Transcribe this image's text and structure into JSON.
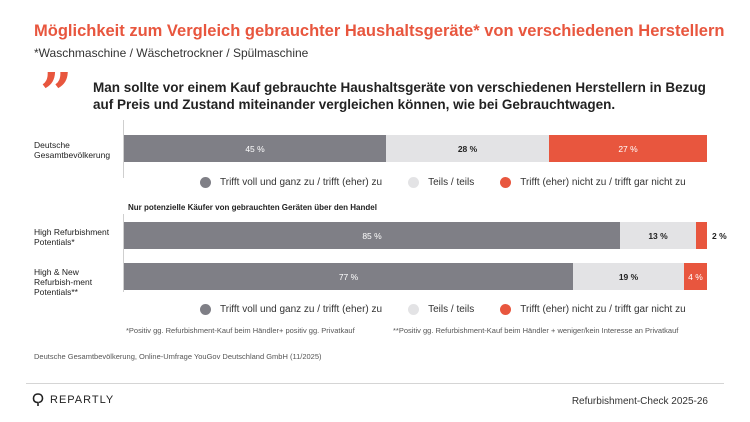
{
  "header": {
    "title": "Möglichkeit zum Vergleich gebrauchter Haushaltsgeräte* von verschiedenen Herstellern",
    "subtitle": "*Waschmaschine / Wäschetrockner / Spülmaschine"
  },
  "quote": {
    "mark": "”",
    "text": "Man sollte vor einem Kauf gebrauchte Haushaltsgeräte von verschiedenen Herstellern in Bezug auf Preis und Zustand miteinander vergleichen können, wie bei Gebrauchtwagen."
  },
  "chart_data": {
    "type": "bar",
    "orientation": "horizontal-stacked-100",
    "series": [
      {
        "name": "Trifft voll und ganz zu / trifft (eher) zu",
        "color": "#7f7f86"
      },
      {
        "name": "Teils / teils",
        "color": "#e3e3e5"
      },
      {
        "name": "Trifft (eher) nicht zu / trifft gar nicht zu",
        "color": "#e8563e"
      }
    ],
    "section_note": "Nur potenzielle Käufer von gebrauchten Geräten über den Handel",
    "rows": [
      {
        "label": "Deutsche Gesamtbevölkerung",
        "values": [
          45,
          28,
          27
        ],
        "display": [
          "45 %",
          "28 %",
          "27 %"
        ]
      },
      {
        "label": "High Refurbishment Potentials*",
        "values": [
          85,
          13,
          2
        ],
        "display": [
          "85 %",
          "13 %",
          "2 %"
        ]
      },
      {
        "label": "High & New Refurbish-ment Potentials**",
        "values": [
          77,
          19,
          4
        ],
        "display": [
          "77 %",
          "19 %",
          "4 %"
        ]
      }
    ],
    "xlim": [
      0,
      100
    ]
  },
  "legend_labels": [
    "Trifft voll und ganz zu / trifft (eher) zu",
    "Teils / teils",
    "Trifft (eher) nicht zu / trifft gar nicht zu"
  ],
  "footnotes": {
    "left": "*Positiv gg. Refurbishment-Kauf beim Händler+ positiv gg. Privatkauf",
    "right": "**Positiv gg. Refurbishment-Kauf beim Händler + weniger/kein Interesse an Privatkauf"
  },
  "source": "Deutsche Gesamtbevölkerung, Online-Umfrage YouGov Deutschland GmbH (11/2025)",
  "footer": {
    "brand": "REPARTLY",
    "report": "Refurbishment-Check 2025-26"
  }
}
